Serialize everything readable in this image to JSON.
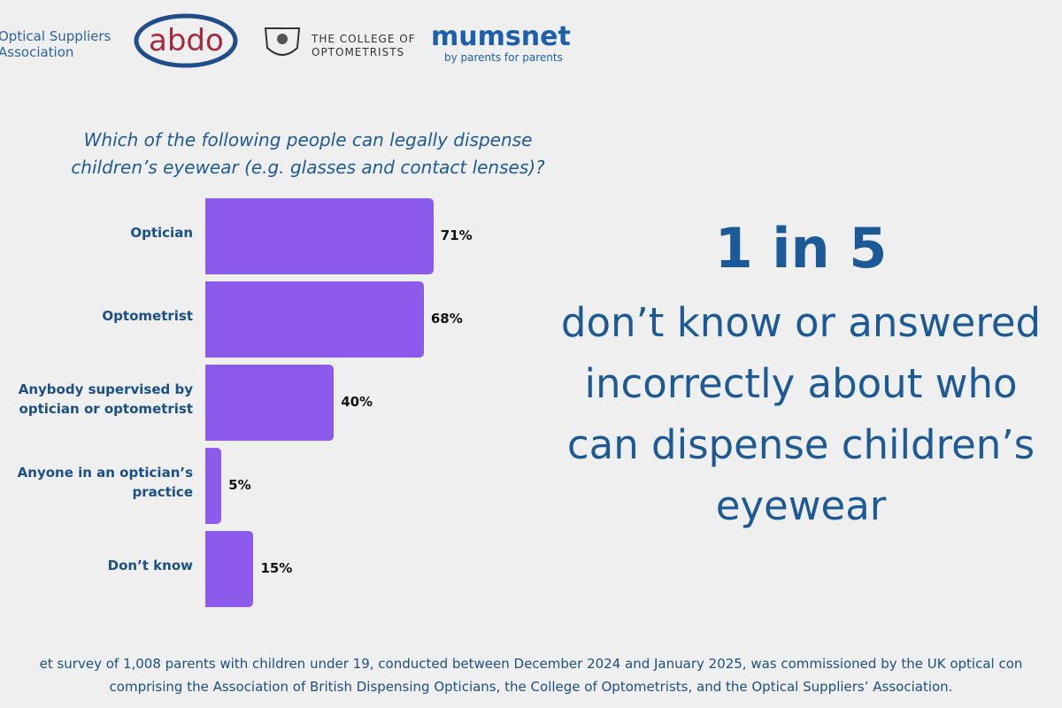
{
  "logos": {
    "osa": [
      "Optical Suppliers",
      "Association"
    ],
    "abdo": "abdo",
    "college": [
      "THE COLLEGE OF",
      "OPTOMETRISTS"
    ],
    "mumsnet": "mumsnet",
    "mumsnet_tagline": "by parents for parents"
  },
  "chart_data": {
    "type": "bar",
    "orientation": "horizontal",
    "title": [
      "Which of the following people can legally dispense",
      "children’s eyewear (e.g. glasses and contact lenses)?"
    ],
    "categories": [
      "Optician",
      "Optometrist",
      "Anybody supervised by optician or optometrist",
      "Anyone in an optician’s practice",
      "Don’t know"
    ],
    "values": [
      71,
      68,
      40,
      5,
      15
    ],
    "value_labels": [
      "71%",
      "68%",
      "40%",
      "5%",
      "15%"
    ],
    "color": "#8c5bec"
  },
  "callout": {
    "headline": "1 in 5",
    "lines": [
      "don’t know or answered",
      "incorrectly about who",
      "can dispense children’s",
      "eyewear"
    ]
  },
  "footer": [
    "et survey of 1,008 parents with children under 19, conducted between December 2024 and January 2025, was commissioned by the UK optical con",
    "comprising the Association of British Dispensing Opticians, the College of Optometrists, and the Optical Suppliers’ Association."
  ]
}
